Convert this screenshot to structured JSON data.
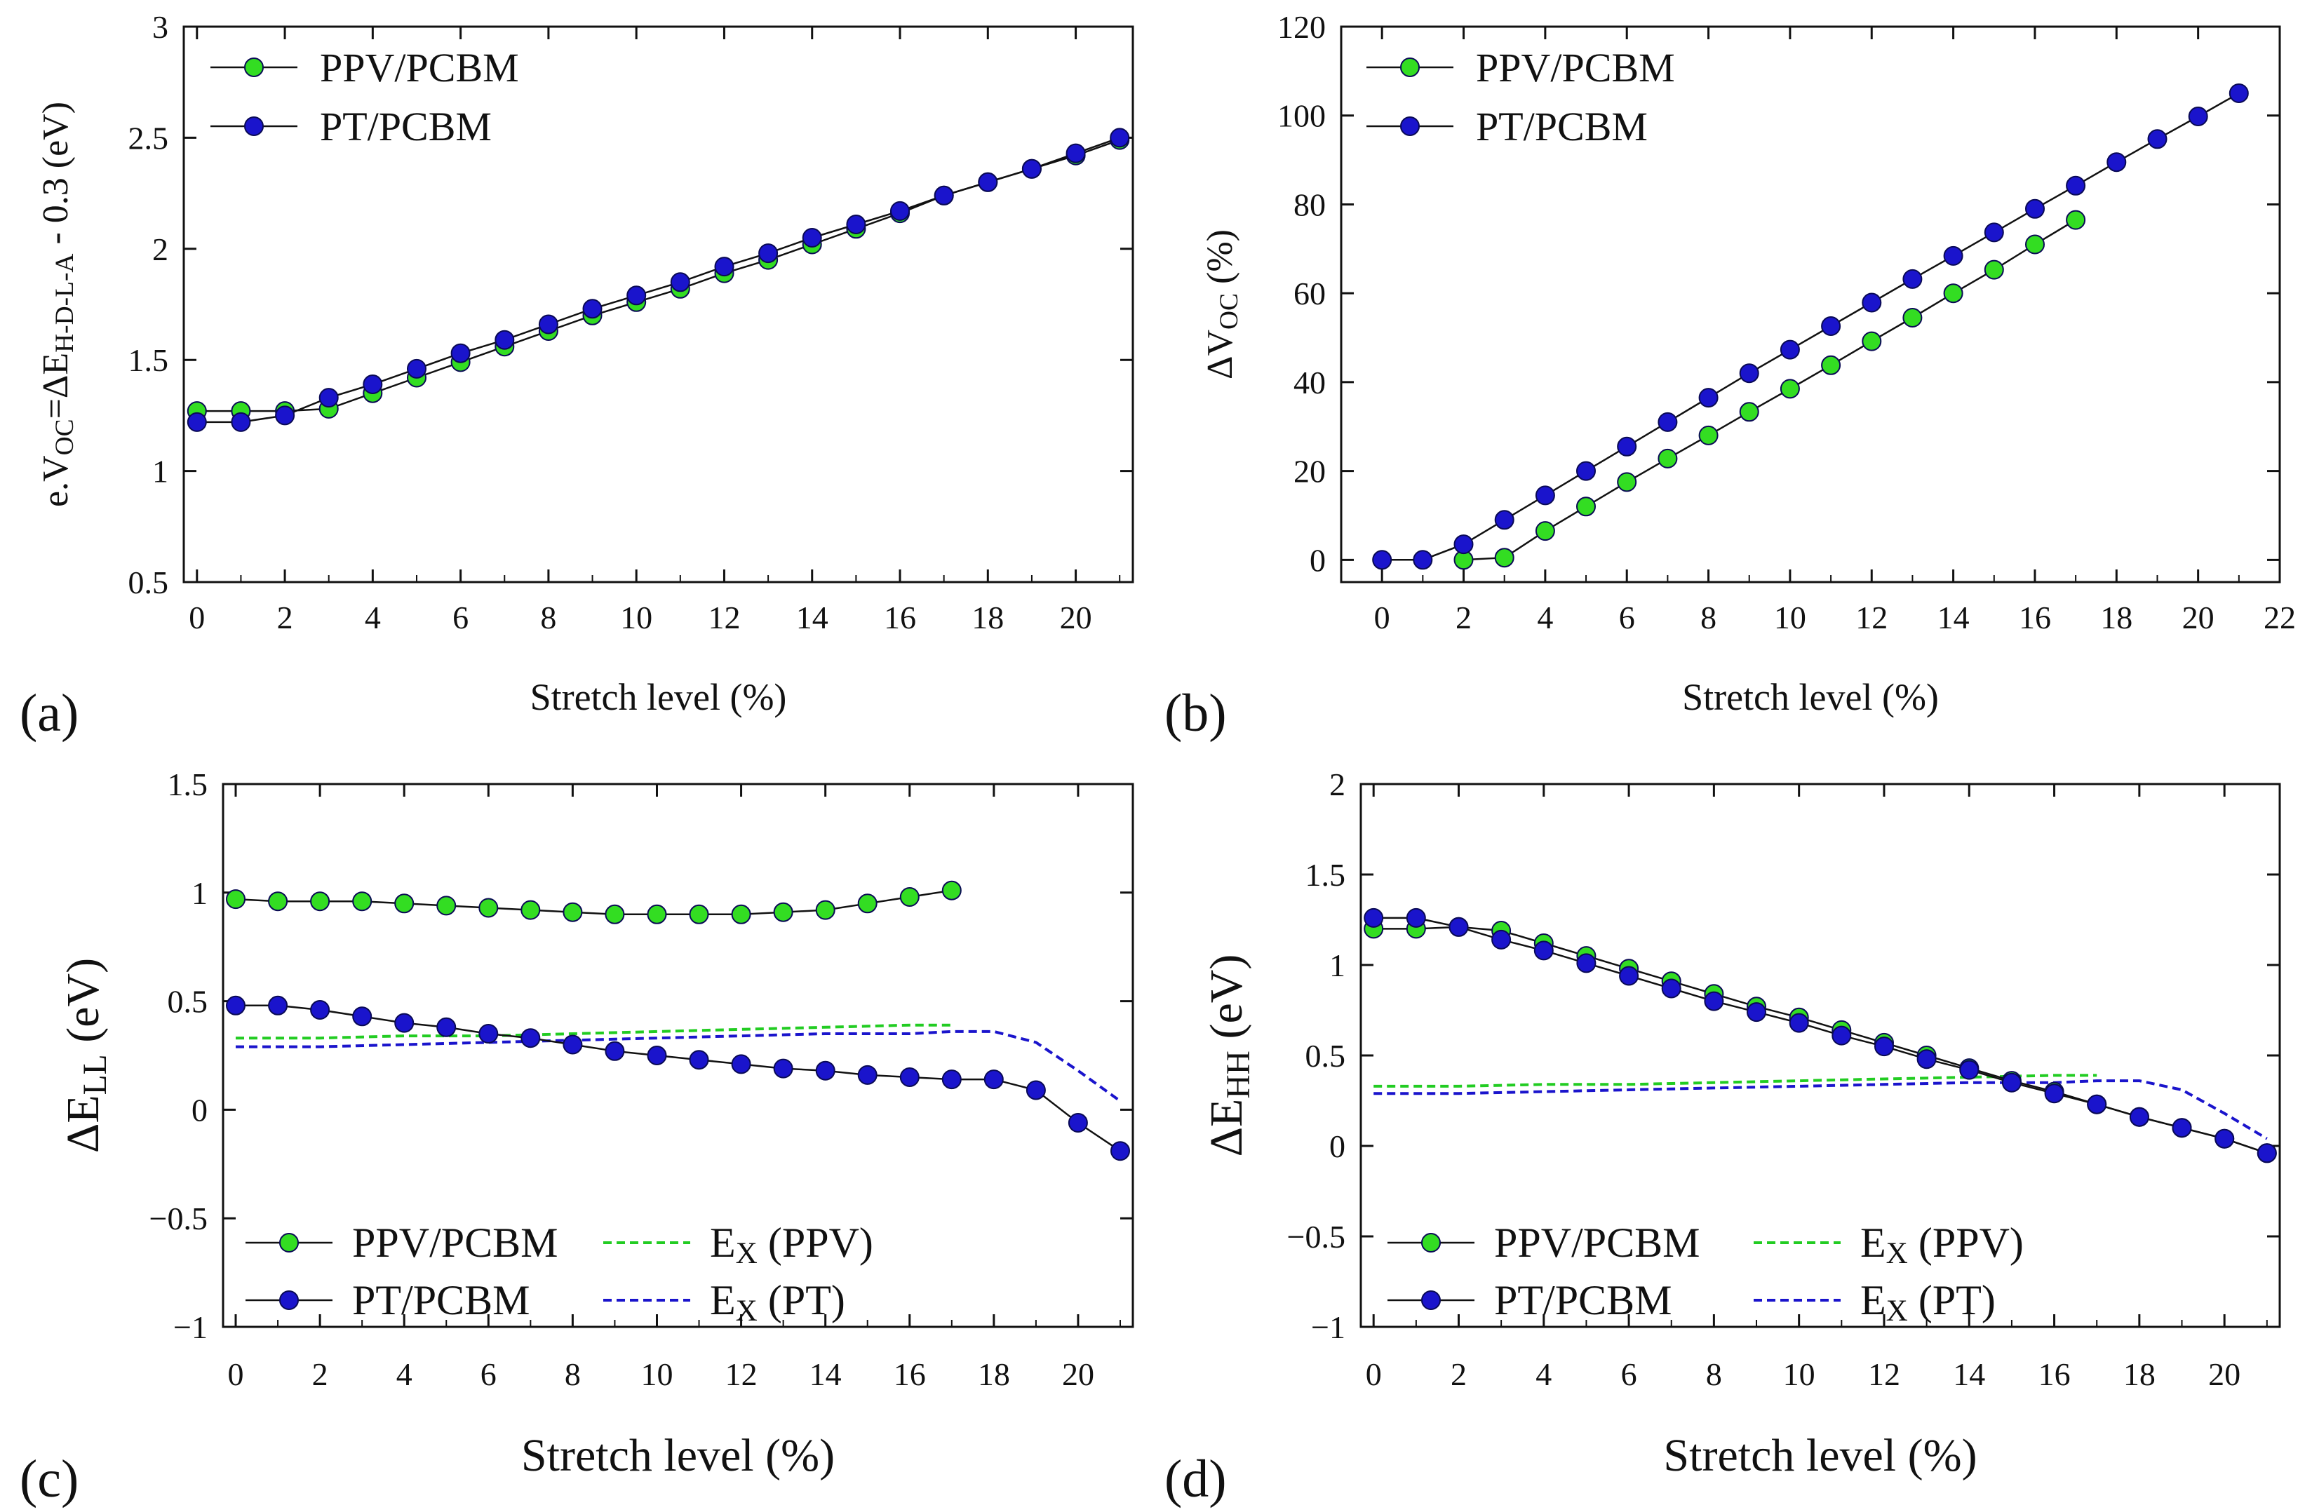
{
  "colors": {
    "ppv": "#33dd22",
    "pt": "#1a14cc",
    "ppv_dash": "#22cc22",
    "pt_dash": "#1a14cc",
    "axis": "#111111"
  },
  "chart_data": [
    {
      "id": "a",
      "type": "line",
      "panel_label": "(a)",
      "xlabel": "Stretch level (%)",
      "ylabel": {
        "main": "e.V",
        "sub1": "OC",
        "eq": "=ΔE",
        "sub2": "H-D-L-A",
        "tail": " - 0.3 (eV)"
      },
      "xlim": [
        -0.3,
        21.3
      ],
      "ylim": [
        0.5,
        3
      ],
      "xticks": [
        0,
        2,
        4,
        6,
        8,
        10,
        12,
        14,
        16,
        18,
        20
      ],
      "xtick_labels": [
        "0",
        "2",
        "4",
        "6",
        "8",
        "10",
        "12",
        "14",
        "16",
        "18",
        "20"
      ],
      "yticks": [
        0.5,
        1,
        1.5,
        2,
        2.5,
        3
      ],
      "ytick_labels": [
        "0.5",
        "1",
        "1.5",
        "2",
        "2.5",
        "3"
      ],
      "legend_position": "top-left",
      "series": [
        {
          "name": "PPV/PCBM",
          "style": "marker",
          "color_key": "ppv",
          "x": [
            0,
            1,
            2,
            3,
            4,
            5,
            6,
            7,
            8,
            9,
            10,
            11,
            12,
            13,
            14,
            15,
            16,
            17,
            18,
            19,
            20,
            21
          ],
          "values": [
            1.27,
            1.27,
            1.27,
            1.28,
            1.35,
            1.42,
            1.49,
            1.56,
            1.63,
            1.7,
            1.76,
            1.82,
            1.89,
            1.95,
            2.02,
            2.09,
            2.16,
            2.24,
            2.3,
            2.36,
            2.42,
            2.49
          ]
        },
        {
          "name": "PT/PCBM",
          "style": "marker",
          "color_key": "pt",
          "x": [
            0,
            1,
            2,
            3,
            4,
            5,
            6,
            7,
            8,
            9,
            10,
            11,
            12,
            13,
            14,
            15,
            16,
            17,
            18,
            19,
            20,
            21
          ],
          "values": [
            1.22,
            1.22,
            1.25,
            1.33,
            1.39,
            1.46,
            1.53,
            1.59,
            1.66,
            1.73,
            1.79,
            1.85,
            1.92,
            1.98,
            2.05,
            2.11,
            2.17,
            2.24,
            2.3,
            2.36,
            2.43,
            2.5
          ]
        }
      ]
    },
    {
      "id": "b",
      "type": "line",
      "panel_label": "(b)",
      "xlabel": "Stretch level (%)",
      "ylabel": {
        "main": "ΔV",
        "sub1": "OC",
        "tail": " (%)"
      },
      "xlim": [
        -1,
        22
      ],
      "ylim": [
        -5,
        120
      ],
      "xticks": [
        0,
        2,
        4,
        6,
        8,
        10,
        12,
        14,
        16,
        18,
        20,
        22
      ],
      "xtick_labels": [
        "0",
        "2",
        "4",
        "6",
        "8",
        "10",
        "12",
        "14",
        "16",
        "18",
        "20",
        "22"
      ],
      "yticks": [
        0,
        20,
        40,
        60,
        80,
        100,
        120
      ],
      "ytick_labels": [
        "0",
        "20",
        "40",
        "60",
        "80",
        "100",
        "120"
      ],
      "legend_position": "top-left",
      "series": [
        {
          "name": "PPV/PCBM",
          "style": "marker",
          "color_key": "ppv",
          "x": [
            2,
            3,
            4,
            5,
            6,
            7,
            8,
            9,
            10,
            11,
            12,
            13,
            14,
            15,
            16,
            17
          ],
          "values": [
            0,
            0.5,
            6.5,
            12,
            17.5,
            22.8,
            28,
            33.3,
            38.5,
            43.8,
            49.2,
            54.5,
            60,
            65.3,
            71,
            76.5
          ]
        },
        {
          "name": "PT/PCBM",
          "style": "marker",
          "color_key": "pt",
          "x": [
            0,
            1,
            2,
            3,
            4,
            5,
            6,
            7,
            8,
            9,
            10,
            11,
            12,
            13,
            14,
            15,
            16,
            17,
            18,
            19,
            20,
            21
          ],
          "values": [
            0,
            0,
            3.5,
            9,
            14.5,
            20,
            25.5,
            31,
            36.5,
            42,
            47.3,
            52.6,
            57.9,
            63.2,
            68.4,
            73.7,
            79,
            84.2,
            89.5,
            94.7,
            99.8,
            105
          ]
        }
      ]
    },
    {
      "id": "c",
      "type": "line",
      "panel_label": "(c)",
      "xlabel": "Stretch level (%)",
      "ylabel": {
        "main": "ΔE",
        "sub1": "LL",
        "tail": " (eV)"
      },
      "xlim": [
        -0.3,
        21.3
      ],
      "ylim": [
        -1,
        1.5
      ],
      "xticks": [
        0,
        2,
        4,
        6,
        8,
        10,
        12,
        14,
        16,
        18,
        20
      ],
      "xtick_labels": [
        "0",
        "2",
        "4",
        "6",
        "8",
        "10",
        "12",
        "14",
        "16",
        "18",
        "20"
      ],
      "yticks": [
        -1,
        -0.5,
        0,
        0.5,
        1,
        1.5
      ],
      "ytick_labels": [
        "−1",
        "−0.5",
        "0",
        "0.5",
        "1",
        "1.5"
      ],
      "legend_position": "bottom",
      "series": [
        {
          "name": "PPV/PCBM",
          "style": "marker",
          "color_key": "ppv",
          "x": [
            0,
            1,
            2,
            3,
            4,
            5,
            6,
            7,
            8,
            9,
            10,
            11,
            12,
            13,
            14,
            15,
            16,
            17
          ],
          "values": [
            0.97,
            0.96,
            0.96,
            0.96,
            0.95,
            0.94,
            0.93,
            0.92,
            0.91,
            0.9,
            0.9,
            0.9,
            0.9,
            0.91,
            0.92,
            0.95,
            0.98,
            1.01
          ]
        },
        {
          "name": "PT/PCBM",
          "style": "marker",
          "color_key": "pt",
          "x": [
            0,
            1,
            2,
            3,
            4,
            5,
            6,
            7,
            8,
            9,
            10,
            11,
            12,
            13,
            14,
            15,
            16,
            17,
            18,
            19,
            20,
            21
          ],
          "values": [
            0.48,
            0.48,
            0.46,
            0.43,
            0.4,
            0.38,
            0.35,
            0.33,
            0.3,
            0.27,
            0.25,
            0.23,
            0.21,
            0.19,
            0.18,
            0.16,
            0.15,
            0.14,
            0.14,
            0.09,
            -0.06,
            -0.19
          ]
        },
        {
          "name": "Ex (PPV)",
          "style": "dashed",
          "color_key": "ppv_dash",
          "x": [
            0,
            2,
            4,
            6,
            8,
            10,
            12,
            14,
            16,
            17
          ],
          "values": [
            0.33,
            0.33,
            0.34,
            0.34,
            0.35,
            0.36,
            0.37,
            0.38,
            0.39,
            0.39
          ]
        },
        {
          "name": "Ex (PT)",
          "style": "dashed",
          "color_key": "pt_dash",
          "x": [
            0,
            2,
            4,
            6,
            8,
            10,
            12,
            14,
            16,
            17,
            18,
            19,
            20,
            21
          ],
          "values": [
            0.29,
            0.29,
            0.3,
            0.31,
            0.32,
            0.33,
            0.34,
            0.35,
            0.35,
            0.36,
            0.36,
            0.31,
            0.18,
            0.04
          ]
        }
      ],
      "legend": [
        {
          "main": "PPV/PCBM",
          "color_key": "ppv",
          "style": "marker"
        },
        {
          "main": "PT/PCBM",
          "color_key": "pt",
          "style": "marker"
        },
        {
          "main": "E",
          "sub": "X",
          "tail": " (PPV)",
          "color_key": "ppv_dash",
          "style": "dashed"
        },
        {
          "main": "E",
          "sub": "X",
          "tail": " (PT)",
          "color_key": "pt_dash",
          "style": "dashed"
        }
      ]
    },
    {
      "id": "d",
      "type": "line",
      "panel_label": "(d)",
      "xlabel": "Stretch level (%)",
      "ylabel": {
        "main": "ΔE",
        "sub1": "HH",
        "tail": " (eV)"
      },
      "xlim": [
        -0.3,
        21.3
      ],
      "ylim": [
        -1,
        2
      ],
      "xticks": [
        0,
        2,
        4,
        6,
        8,
        10,
        12,
        14,
        16,
        18,
        20
      ],
      "xtick_labels": [
        "0",
        "2",
        "4",
        "6",
        "8",
        "10",
        "12",
        "14",
        "16",
        "18",
        "20"
      ],
      "yticks": [
        -1,
        -0.5,
        0,
        0.5,
        1,
        1.5,
        2
      ],
      "ytick_labels": [
        "−1",
        "−0.5",
        "0",
        "0.5",
        "1",
        "1.5",
        "2"
      ],
      "legend_position": "bottom",
      "series": [
        {
          "name": "PPV/PCBM",
          "style": "marker",
          "color_key": "ppv",
          "x": [
            0,
            1,
            2,
            3,
            4,
            5,
            6,
            7,
            8,
            9,
            10,
            11,
            12,
            13,
            14,
            15,
            16,
            17,
            18,
            19,
            20,
            21
          ],
          "values": [
            1.2,
            1.2,
            1.21,
            1.19,
            1.12,
            1.05,
            0.98,
            0.91,
            0.84,
            0.77,
            0.71,
            0.64,
            0.57,
            0.5,
            0.43,
            0.36,
            0.3,
            0.23,
            0.16,
            0.1,
            0.04,
            -0.04
          ]
        },
        {
          "name": "PT/PCBM",
          "style": "marker",
          "color_key": "pt",
          "x": [
            0,
            1,
            2,
            3,
            4,
            5,
            6,
            7,
            8,
            9,
            10,
            11,
            12,
            13,
            14,
            15,
            16,
            17,
            18,
            19,
            20,
            21
          ],
          "values": [
            1.26,
            1.26,
            1.21,
            1.14,
            1.08,
            1.01,
            0.94,
            0.87,
            0.8,
            0.74,
            0.68,
            0.61,
            0.55,
            0.48,
            0.42,
            0.35,
            0.29,
            0.23,
            0.16,
            0.1,
            0.04,
            -0.04
          ]
        },
        {
          "name": "Ex (PPV)",
          "style": "dashed",
          "color_key": "ppv_dash",
          "x": [
            0,
            2,
            4,
            6,
            8,
            10,
            12,
            14,
            16,
            17
          ],
          "values": [
            0.33,
            0.33,
            0.34,
            0.34,
            0.35,
            0.36,
            0.37,
            0.38,
            0.39,
            0.39
          ]
        },
        {
          "name": "Ex (PT)",
          "style": "dashed",
          "color_key": "pt_dash",
          "x": [
            0,
            2,
            4,
            6,
            8,
            10,
            12,
            14,
            16,
            17,
            18,
            19,
            20,
            21
          ],
          "values": [
            0.29,
            0.29,
            0.3,
            0.31,
            0.32,
            0.33,
            0.34,
            0.35,
            0.35,
            0.36,
            0.36,
            0.31,
            0.18,
            0.04
          ]
        }
      ],
      "legend": [
        {
          "main": "PPV/PCBM",
          "color_key": "ppv",
          "style": "marker"
        },
        {
          "main": "PT/PCBM",
          "color_key": "pt",
          "style": "marker"
        },
        {
          "main": "E",
          "sub": "X",
          "tail": " (PPV)",
          "color_key": "ppv_dash",
          "style": "dashed"
        },
        {
          "main": "E",
          "sub": "X",
          "tail": " (PT)",
          "color_key": "pt_dash",
          "style": "dashed"
        }
      ]
    }
  ]
}
